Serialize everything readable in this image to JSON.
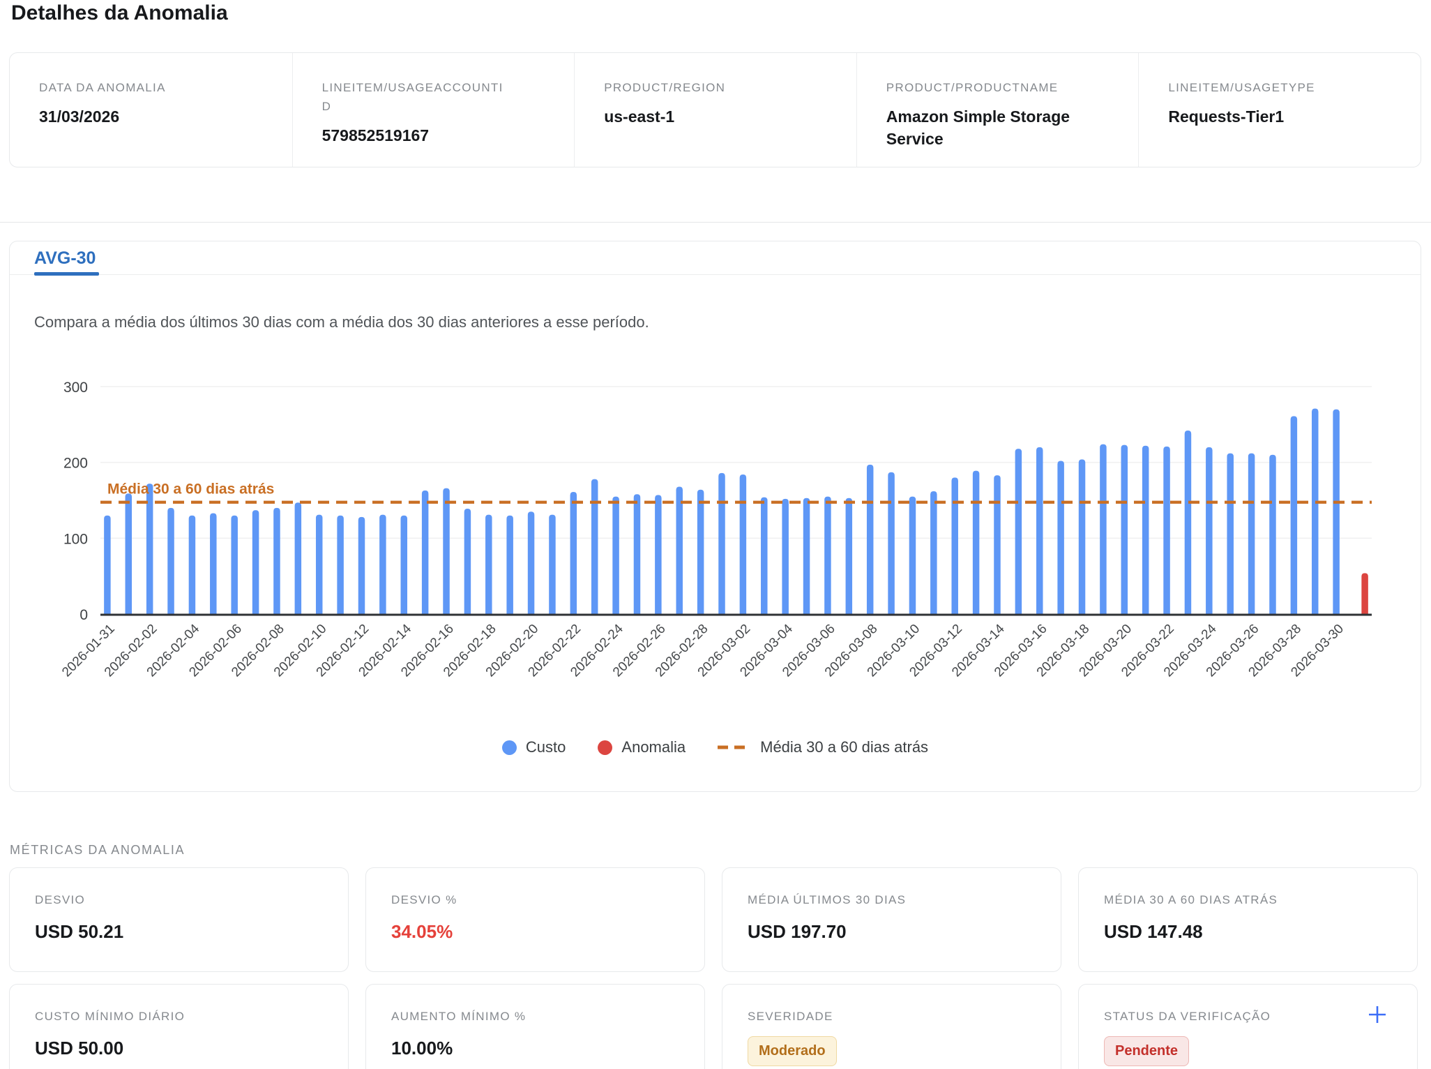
{
  "page_title": "Detalhes da Anomalia",
  "info_cards": [
    {
      "label": "DATA DA ANOMALIA",
      "value": "31/03/2026"
    },
    {
      "label": "LINEITEM/USAGEACCOUNTID",
      "value": "579852519167"
    },
    {
      "label": "PRODUCT/REGION",
      "value": "us-east-1"
    },
    {
      "label": "PRODUCT/PRODUCTNAME",
      "value": "Amazon Simple Storage Service"
    },
    {
      "label": "LINEITEM/USAGETYPE",
      "value": "Requests-Tier1"
    }
  ],
  "tab": {
    "label": "AVG-30"
  },
  "chart_description": "Compara a média dos últimos 30 dias com a média dos 30 dias anteriores a esse período.",
  "chart_data": {
    "type": "bar",
    "title": "",
    "xlabel": "",
    "ylabel": "",
    "ylim": [
      0,
      300
    ],
    "yticks": [
      0,
      100,
      200,
      300
    ],
    "grid": true,
    "legend_position": "bottom",
    "x_tick_label_every": 2,
    "categories": [
      "2026-01-31",
      "2026-02-01",
      "2026-02-02",
      "2026-02-03",
      "2026-02-04",
      "2026-02-05",
      "2026-02-06",
      "2026-02-07",
      "2026-02-08",
      "2026-02-09",
      "2026-02-10",
      "2026-02-11",
      "2026-02-12",
      "2026-02-13",
      "2026-02-14",
      "2026-02-15",
      "2026-02-16",
      "2026-02-17",
      "2026-02-18",
      "2026-02-19",
      "2026-02-20",
      "2026-02-21",
      "2026-02-22",
      "2026-02-23",
      "2026-02-24",
      "2026-02-25",
      "2026-02-26",
      "2026-02-27",
      "2026-02-28",
      "2026-03-01",
      "2026-03-02",
      "2026-03-03",
      "2026-03-04",
      "2026-03-05",
      "2026-03-06",
      "2026-03-07",
      "2026-03-08",
      "2026-03-09",
      "2026-03-10",
      "2026-03-11",
      "2026-03-12",
      "2026-03-13",
      "2026-03-14",
      "2026-03-15",
      "2026-03-16",
      "2026-03-17",
      "2026-03-18",
      "2026-03-19",
      "2026-03-20",
      "2026-03-21",
      "2026-03-22",
      "2026-03-23",
      "2026-03-24",
      "2026-03-25",
      "2026-03-26",
      "2026-03-27",
      "2026-03-28",
      "2026-03-29",
      "2026-03-30",
      "2026-03-31"
    ],
    "series": [
      {
        "name": "Custo",
        "color": "#5E97F6",
        "values": [
          130,
          159,
          172,
          140,
          130,
          133,
          130,
          137,
          140,
          147,
          131,
          130,
          128,
          131,
          130,
          163,
          166,
          139,
          131,
          130,
          135,
          131,
          161,
          178,
          155,
          158,
          157,
          168,
          164,
          186,
          184,
          154,
          152,
          153,
          155,
          153,
          197,
          187,
          155,
          162,
          180,
          189,
          183,
          218,
          220,
          202,
          204,
          224,
          223,
          222,
          221,
          242,
          220,
          212,
          212,
          210,
          261,
          271,
          270,
          null
        ]
      },
      {
        "name": "Anomalia",
        "color": "#DC4540",
        "values": [
          null,
          null,
          null,
          null,
          null,
          null,
          null,
          null,
          null,
          null,
          null,
          null,
          null,
          null,
          null,
          null,
          null,
          null,
          null,
          null,
          null,
          null,
          null,
          null,
          null,
          null,
          null,
          null,
          null,
          null,
          null,
          null,
          null,
          null,
          null,
          null,
          null,
          null,
          null,
          null,
          null,
          null,
          null,
          null,
          null,
          null,
          null,
          null,
          null,
          null,
          null,
          null,
          null,
          null,
          null,
          null,
          null,
          null,
          null,
          54
        ]
      }
    ],
    "reference_line": {
      "label": "Média 30 a 60 dias atrás",
      "value": 147.48,
      "color": "#C96F24",
      "style": "dashed"
    }
  },
  "metrics_section_label": "MÉTRICAS DA ANOMALIA",
  "metrics": [
    {
      "label": "DESVIO",
      "value": "USD 50.21"
    },
    {
      "label": "DESVIO %",
      "value": "34.05%"
    },
    {
      "label": "MÉDIA ÚLTIMOS 30 DIAS",
      "value": "USD 197.70"
    },
    {
      "label": "MÉDIA 30 A 60 DIAS ATRÁS",
      "value": "USD 147.48"
    },
    {
      "label": "CUSTO MÍNIMO DIÁRIO",
      "value": "USD 50.00"
    },
    {
      "label": "AUMENTO MÍNIMO %",
      "value": "10.00%"
    },
    {
      "label": "SEVERIDADE",
      "value": "Moderado"
    },
    {
      "label": "STATUS DA VERIFICAÇÃO",
      "value": "Pendente"
    }
  ],
  "colors": {
    "tab_active": "#2E6FBE",
    "cost_bar": "#5E97F6",
    "anomaly_bar": "#DC4540",
    "reference_line": "#C96F24",
    "deviation_percent_text": "#E5413A",
    "add_status_icon": "#3D6EF7",
    "severity_badge_text": "#B26E1A",
    "status_badge_text": "#C3302B",
    "axis_text": "#3F4245"
  }
}
